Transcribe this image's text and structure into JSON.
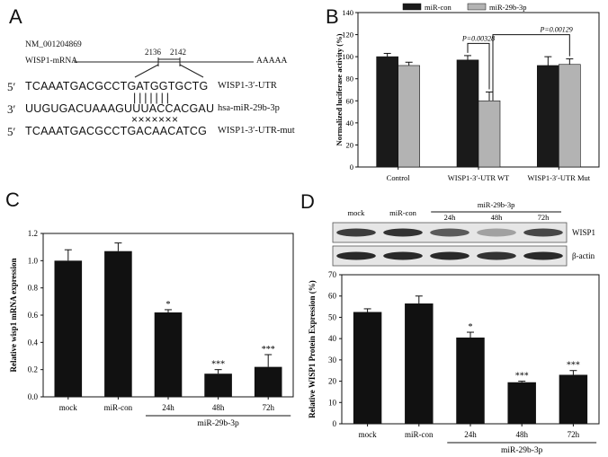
{
  "panelA": {
    "label": "A",
    "accession": "NM_001204869",
    "mrna_label": "WISP1-mRNA",
    "poly_a": "AAAAA",
    "pos_start": "2136",
    "pos_end": "2142",
    "rows": [
      {
        "prime": "5′",
        "seq": "TCAAATGACGCCTGATGGTGCTG",
        "name": "WISP1-3′-UTR"
      },
      {
        "prime": "3′",
        "seq": "UUGUGACUAAAGUUUACCACGAU",
        "name": "hsa-miR-29b-3p"
      },
      {
        "prime": "5′",
        "seq": "TCAAATGACGCCTGACAACATCG",
        "name": "WISP1-3′-UTR-mut"
      }
    ],
    "pairing": "| | | | | | |",
    "mutations": "×××××××"
  },
  "panelB": {
    "label": "B",
    "pvalue1": "P=0.00328",
    "pvalue2": "P=0.00129"
  },
  "panelC": {
    "label": "C",
    "group_label": "miR-29b-3p",
    "stars": [
      "",
      "",
      "*",
      "***",
      "***"
    ]
  },
  "panelD": {
    "label": "D",
    "blot_lanes": [
      "mock",
      "miR-con",
      "24h",
      "48h",
      "72h"
    ],
    "blot_group": "miR-29b-3p",
    "blot_row1": "WISP1",
    "blot_row2": "β-actin",
    "group_label": "miR-29b-3p",
    "stars": [
      "",
      "",
      "*",
      "***",
      "***"
    ]
  },
  "chart_data": [
    {
      "type": "bar",
      "panel": "B",
      "categories": [
        "Control",
        "WISP1-3′-UTR WT",
        "WISP1-3′-UTR Mut"
      ],
      "series": [
        {
          "name": "miR-con",
          "values": [
            100,
            97,
            92
          ],
          "errors": [
            3,
            4,
            8
          ],
          "color": "#1a1a1a"
        },
        {
          "name": "miR-29b-3p",
          "values": [
            92,
            60,
            93
          ],
          "errors": [
            3,
            8,
            5
          ],
          "color": "#b3b3b3"
        }
      ],
      "ylabel": "Normalized luciferase activity (%)",
      "ylim": [
        0,
        140
      ],
      "yticks": [
        0,
        20,
        40,
        60,
        80,
        100,
        120,
        140
      ],
      "legend": "top"
    },
    {
      "type": "bar",
      "panel": "C",
      "categories": [
        "mock",
        "miR-con",
        "24h",
        "48h",
        "72h"
      ],
      "values": [
        1.0,
        1.07,
        0.62,
        0.17,
        0.22
      ],
      "errors": [
        0.08,
        0.06,
        0.02,
        0.03,
        0.09
      ],
      "ylabel": "Relative wisp1 mRNA expression",
      "ylim": [
        0,
        1.2
      ],
      "yticks": [
        0.0,
        0.2,
        0.4,
        0.6,
        0.8,
        1.0,
        1.2
      ],
      "color": "#111111"
    },
    {
      "type": "bar",
      "panel": "D",
      "categories": [
        "mock",
        "miR-con",
        "24h",
        "48h",
        "72h"
      ],
      "values": [
        52.5,
        56.5,
        40.5,
        19.5,
        23
      ],
      "errors": [
        1.5,
        3.5,
        2.5,
        0.5,
        2
      ],
      "ylabel": "Relative WISP1 Protein Expression (%)",
      "ylim": [
        0,
        70
      ],
      "yticks": [
        0,
        10,
        20,
        30,
        40,
        50,
        60,
        70
      ],
      "color": "#111111"
    }
  ]
}
